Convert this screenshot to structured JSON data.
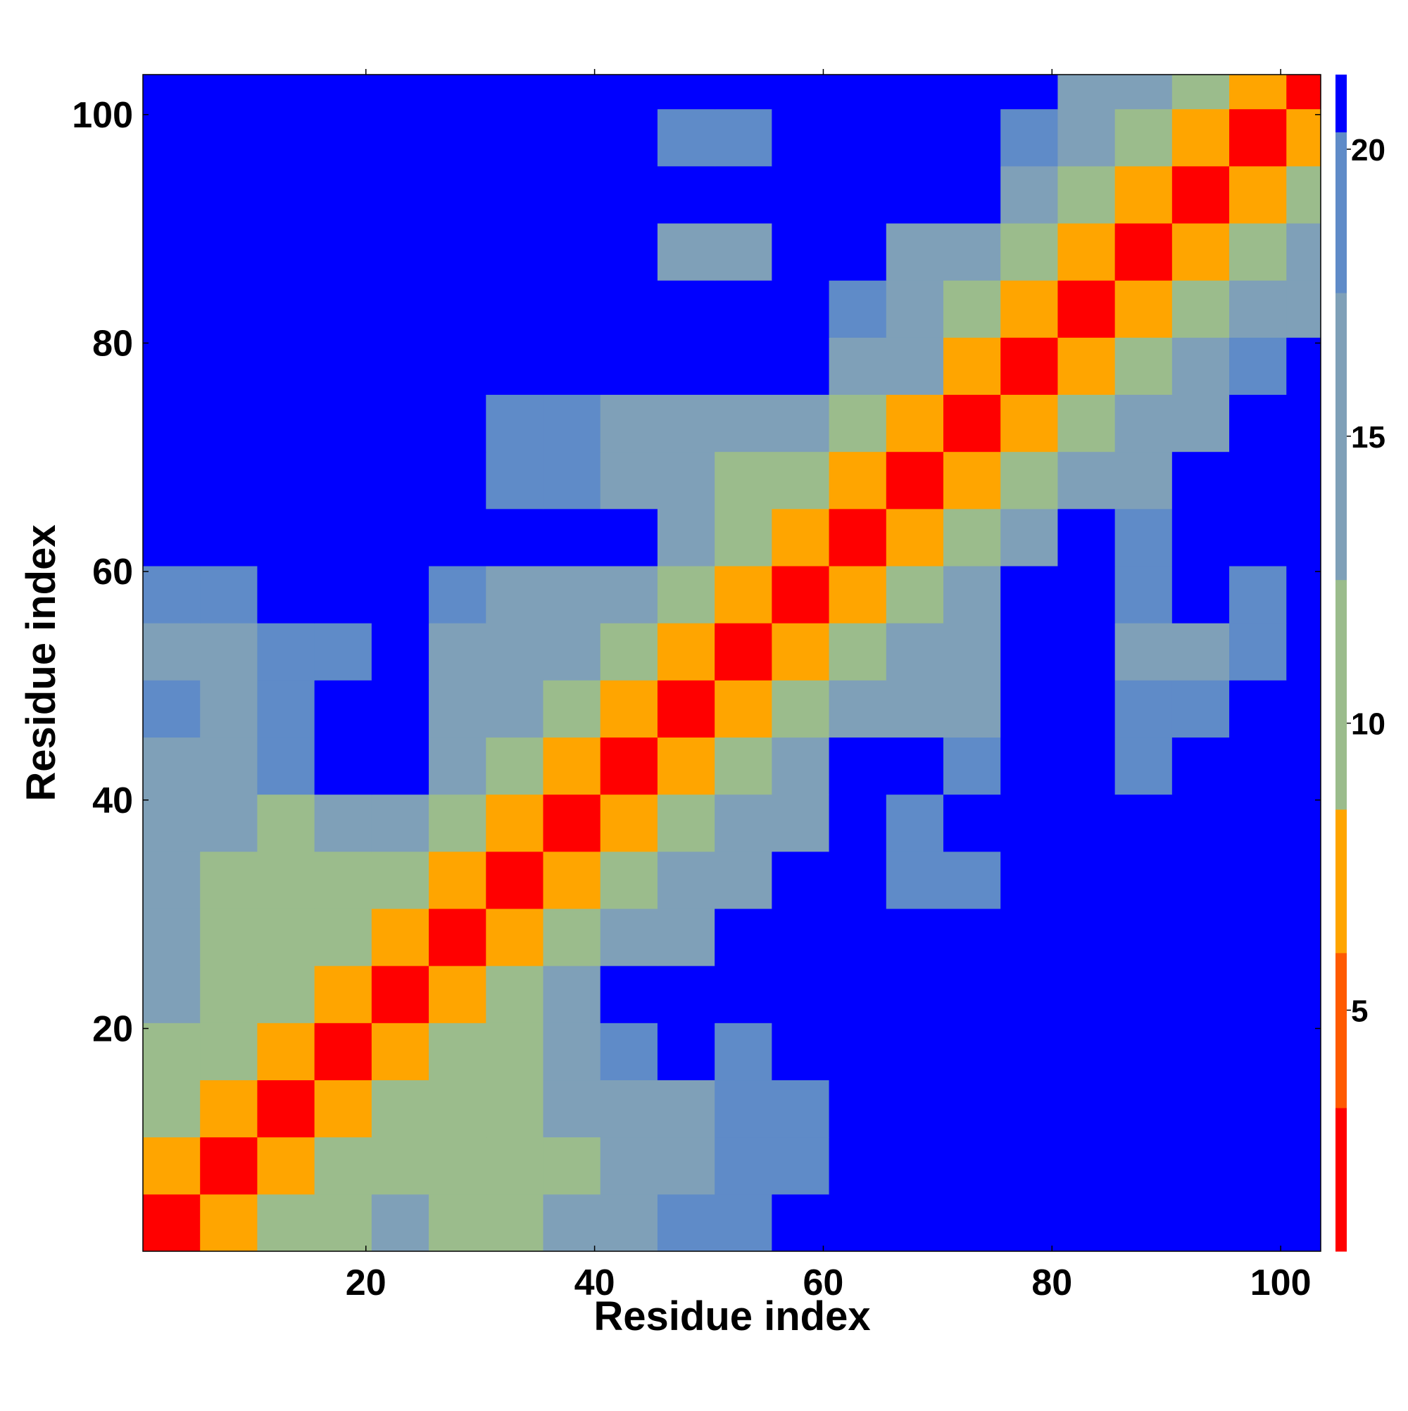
{
  "chart_data": {
    "type": "heatmap",
    "x_label": "Residue index",
    "y_label": "Residue index",
    "xlim": [
      0.5,
      103.5
    ],
    "ylim": [
      0.5,
      103.5
    ],
    "xticks": [
      20,
      40,
      60,
      80,
      100
    ],
    "yticks": [
      20,
      40,
      60,
      80,
      100
    ],
    "xbins": [
      0.5,
      5.5,
      10.5,
      15.5,
      20.5,
      25.5,
      30.5,
      35.5,
      40.5,
      45.5,
      50.5,
      55.5,
      60.5,
      65.5,
      70.5,
      75.5,
      80.5,
      85.5,
      90.5,
      95.5,
      100.5,
      103.5
    ],
    "ybins": [
      0.5,
      5.5,
      10.5,
      15.5,
      20.5,
      25.5,
      30.5,
      35.5,
      40.5,
      45.5,
      50.5,
      55.5,
      60.5,
      65.5,
      70.5,
      75.5,
      80.5,
      85.5,
      90.5,
      95.5,
      100.5,
      103.5
    ],
    "z": [
      [
        3,
        8,
        11,
        12,
        14,
        12,
        12,
        14,
        17,
        18,
        19,
        21,
        21,
        21,
        21,
        21,
        21,
        21,
        21,
        21,
        21
      ],
      [
        8,
        3,
        8,
        11,
        12,
        11,
        11,
        12,
        15,
        17,
        18,
        19,
        21,
        21,
        21,
        21,
        21,
        21,
        21,
        21,
        21
      ],
      [
        11,
        8,
        3,
        8,
        11,
        12,
        12,
        13,
        16,
        17,
        18,
        19,
        21,
        21,
        21,
        21,
        21,
        21,
        21,
        21,
        21
      ],
      [
        12,
        11,
        8,
        3,
        8,
        11,
        12,
        14,
        18,
        21,
        19,
        21,
        21,
        21,
        21,
        21,
        21,
        21,
        21,
        21,
        21
      ],
      [
        14,
        12,
        11,
        8,
        3,
        8,
        11,
        14,
        21,
        21,
        21,
        21,
        21,
        21,
        21,
        21,
        21,
        21,
        21,
        21,
        21
      ],
      [
        13,
        12,
        11,
        11,
        8,
        3,
        8,
        11,
        14,
        17,
        21,
        21,
        21,
        21,
        21,
        21,
        21,
        21,
        21,
        21,
        21
      ],
      [
        13,
        11,
        11,
        11,
        9,
        8,
        3,
        8,
        11,
        14,
        15,
        21,
        21,
        19,
        18,
        21,
        21,
        21,
        21,
        21,
        21
      ],
      [
        13,
        13,
        12,
        14,
        15,
        10,
        8,
        3,
        7,
        11,
        13,
        15,
        21,
        19,
        21,
        21,
        21,
        21,
        21,
        21,
        21
      ],
      [
        17,
        17,
        18,
        21,
        21,
        14,
        11,
        7,
        3,
        8,
        11,
        14,
        21,
        21,
        19,
        21,
        21,
        19,
        21,
        21,
        21
      ],
      [
        18,
        17,
        18,
        21,
        21,
        15,
        13,
        11,
        8,
        3,
        8,
        11,
        15,
        16,
        17,
        21,
        21,
        18,
        18,
        21,
        21
      ],
      [
        17,
        17,
        18,
        19,
        21,
        15,
        14,
        13,
        11,
        8,
        3,
        8,
        11,
        14,
        16,
        21,
        21,
        17,
        17,
        18,
        21
      ],
      [
        19,
        19,
        21,
        21,
        21,
        19,
        17,
        16,
        13,
        11,
        8,
        3,
        7,
        11,
        14,
        21,
        21,
        19,
        21,
        19,
        21
      ],
      [
        21,
        21,
        21,
        21,
        21,
        21,
        21,
        21,
        21,
        15,
        11,
        7,
        3,
        8,
        11,
        16,
        21,
        19,
        21,
        21,
        21
      ],
      [
        21,
        21,
        21,
        21,
        21,
        21,
        18,
        19,
        16,
        14,
        12,
        11,
        8,
        3,
        8,
        11,
        13,
        15,
        21,
        21,
        21
      ],
      [
        21,
        21,
        21,
        21,
        21,
        21,
        19,
        19,
        16,
        15,
        14,
        13,
        11,
        8,
        3,
        7,
        11,
        13,
        15,
        21,
        21
      ],
      [
        21,
        21,
        21,
        21,
        21,
        21,
        21,
        21,
        21,
        21,
        21,
        21,
        15,
        13,
        8,
        3,
        8,
        11,
        14,
        18,
        21
      ],
      [
        21,
        21,
        21,
        21,
        21,
        21,
        21,
        21,
        21,
        21,
        21,
        21,
        18,
        14,
        12,
        8,
        3,
        8,
        11,
        14,
        17
      ],
      [
        21,
        21,
        21,
        21,
        21,
        21,
        21,
        21,
        21,
        17,
        17,
        21,
        21,
        15,
        14,
        11,
        8,
        3,
        8,
        11,
        14
      ],
      [
        21,
        21,
        21,
        21,
        21,
        21,
        21,
        21,
        21,
        21,
        21,
        21,
        21,
        21,
        21,
        14,
        11,
        8,
        3,
        8,
        11
      ],
      [
        21,
        21,
        21,
        21,
        21,
        21,
        21,
        21,
        21,
        19,
        19,
        21,
        21,
        21,
        21,
        18,
        14,
        11,
        8,
        3,
        7
      ],
      [
        21,
        21,
        21,
        21,
        21,
        21,
        21,
        21,
        21,
        21,
        21,
        21,
        21,
        21,
        21,
        21,
        17,
        14,
        11,
        7,
        3
      ]
    ],
    "clim": [
      0.8,
      21.3
    ],
    "cticks": [
      5,
      10,
      15,
      20
    ],
    "colormap": [
      {
        "max": 3.3,
        "color": "#ff0000"
      },
      {
        "max": 6,
        "color": "#ff5a00"
      },
      {
        "max": 8.5,
        "color": "#ffa500"
      },
      {
        "max": 12.5,
        "color": "#9bbc8c"
      },
      {
        "max": 17.5,
        "color": "#7fa0b8"
      },
      {
        "max": 20.3,
        "color": "#5f8bc8"
      },
      {
        "max": 21.3,
        "color": "#0000ff"
      }
    ]
  }
}
